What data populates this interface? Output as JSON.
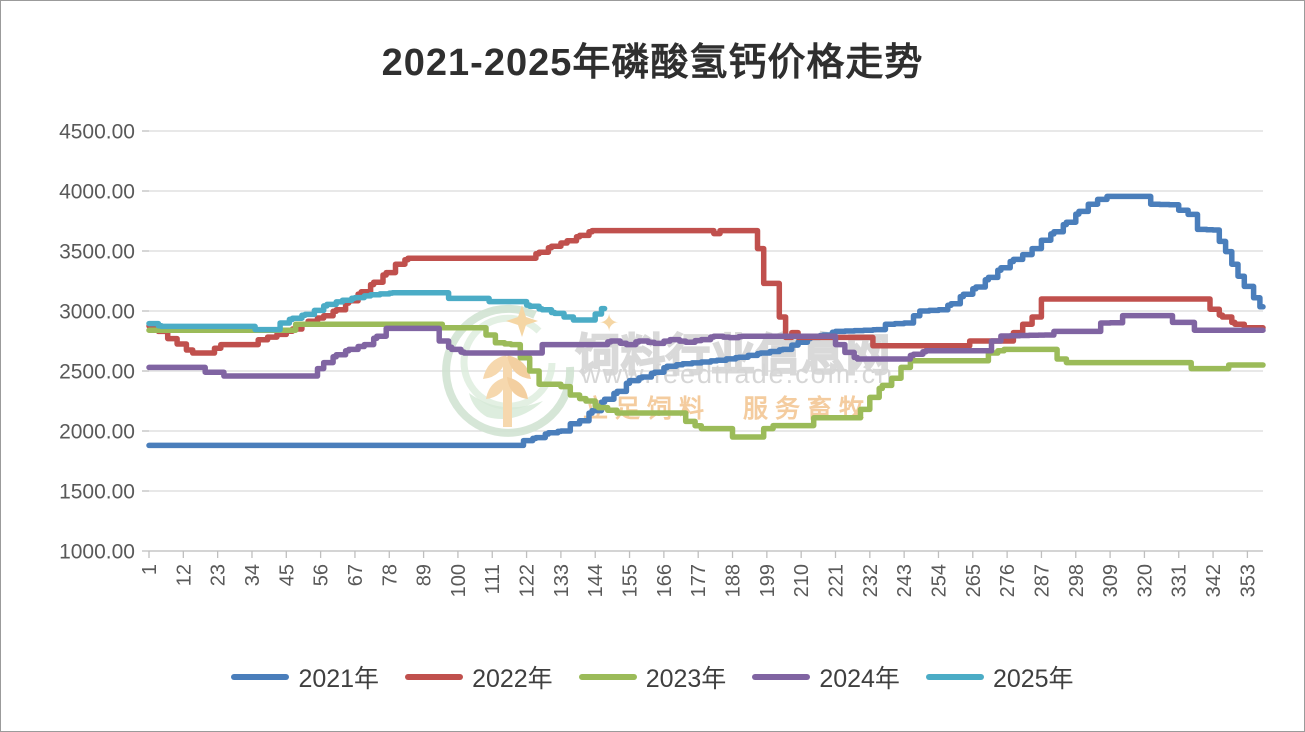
{
  "title": "2021-2025年磷酸氢钙价格走势",
  "watermark": {
    "site_name": "饲料行业信息网",
    "url": "www.feedtrade.com.cn",
    "slogan": "立足饲料　服务畜牧",
    "logo": "feedtrade-wheat-emblem",
    "sparkle_icon": "✦"
  },
  "colors": {
    "grid": "#d9d9d9",
    "axis": "#bfbfbf",
    "axis_text": "#595959",
    "title_text": "#2f2f2f"
  },
  "chart_data": {
    "type": "line",
    "title": "2021-2025年磷酸氢钙价格走势",
    "xlabel": "",
    "ylabel": "",
    "x_tick_labels": [
      1,
      12,
      23,
      34,
      45,
      56,
      67,
      78,
      89,
      100,
      111,
      122,
      133,
      144,
      155,
      166,
      177,
      188,
      199,
      210,
      221,
      232,
      243,
      254,
      265,
      276,
      287,
      298,
      309,
      320,
      331,
      342,
      353
    ],
    "x_range": [
      1,
      358
    ],
    "ylim": [
      1000,
      4500
    ],
    "y_tick_interval": 500,
    "y_tick_format": "0.00",
    "grid": "horizontal",
    "legend_position": "bottom",
    "series": [
      {
        "name": "2021年",
        "color": "#4a7ebb",
        "points": [
          [
            1,
            1880
          ],
          [
            118,
            1880
          ],
          [
            121,
            1920
          ],
          [
            125,
            1945
          ],
          [
            129,
            1985
          ],
          [
            133,
            2000
          ],
          [
            136,
            2060
          ],
          [
            139,
            2085
          ],
          [
            143,
            2170
          ],
          [
            147,
            2265
          ],
          [
            151,
            2330
          ],
          [
            155,
            2420
          ],
          [
            159,
            2450
          ],
          [
            163,
            2490
          ],
          [
            167,
            2540
          ],
          [
            172,
            2560
          ],
          [
            178,
            2575
          ],
          [
            183,
            2590
          ],
          [
            190,
            2615
          ],
          [
            197,
            2650
          ],
          [
            204,
            2680
          ],
          [
            209,
            2740
          ],
          [
            213,
            2780
          ],
          [
            217,
            2800
          ],
          [
            221,
            2830
          ],
          [
            234,
            2845
          ],
          [
            237,
            2890
          ],
          [
            243,
            2900
          ],
          [
            248,
            3000
          ],
          [
            254,
            3010
          ],
          [
            258,
            3060
          ],
          [
            262,
            3140
          ],
          [
            266,
            3200
          ],
          [
            270,
            3280
          ],
          [
            274,
            3360
          ],
          [
            278,
            3430
          ],
          [
            281,
            3470
          ],
          [
            284,
            3520
          ],
          [
            287,
            3590
          ],
          [
            291,
            3660
          ],
          [
            295,
            3740
          ],
          [
            299,
            3830
          ],
          [
            302,
            3890
          ],
          [
            305,
            3930
          ],
          [
            308,
            3955
          ],
          [
            319,
            3955
          ],
          [
            322,
            3890
          ],
          [
            328,
            3885
          ],
          [
            331,
            3840
          ],
          [
            334,
            3805
          ],
          [
            337,
            3680
          ],
          [
            342,
            3675
          ],
          [
            344,
            3580
          ],
          [
            346,
            3495
          ],
          [
            348,
            3390
          ],
          [
            350,
            3290
          ],
          [
            352,
            3205
          ],
          [
            355,
            3110
          ],
          [
            357,
            3035
          ],
          [
            358,
            3035
          ]
        ]
      },
      {
        "name": "2022年",
        "color": "#c0504d",
        "points": [
          [
            1,
            2875
          ],
          [
            4,
            2830
          ],
          [
            7,
            2770
          ],
          [
            10,
            2725
          ],
          [
            13,
            2675
          ],
          [
            15,
            2650
          ],
          [
            20,
            2650
          ],
          [
            22,
            2690
          ],
          [
            24,
            2720
          ],
          [
            33,
            2720
          ],
          [
            36,
            2760
          ],
          [
            42,
            2805
          ],
          [
            47,
            2850
          ],
          [
            52,
            2915
          ],
          [
            57,
            2960
          ],
          [
            61,
            3010
          ],
          [
            65,
            3085
          ],
          [
            69,
            3160
          ],
          [
            73,
            3240
          ],
          [
            77,
            3320
          ],
          [
            80,
            3390
          ],
          [
            84,
            3440
          ],
          [
            122,
            3440
          ],
          [
            126,
            3490
          ],
          [
            130,
            3540
          ],
          [
            135,
            3585
          ],
          [
            139,
            3630
          ],
          [
            143,
            3670
          ],
          [
            180,
            3670
          ],
          [
            182,
            3645
          ],
          [
            184,
            3670
          ],
          [
            194,
            3670
          ],
          [
            196,
            3520
          ],
          [
            198,
            3230
          ],
          [
            201,
            3230
          ],
          [
            203,
            2950
          ],
          [
            205,
            2780
          ],
          [
            207,
            2820
          ],
          [
            209,
            2780
          ],
          [
            231,
            2780
          ],
          [
            233,
            2710
          ],
          [
            261,
            2710
          ],
          [
            264,
            2750
          ],
          [
            275,
            2750
          ],
          [
            278,
            2820
          ],
          [
            281,
            2890
          ],
          [
            284,
            2950
          ],
          [
            287,
            3100
          ],
          [
            338,
            3100
          ],
          [
            341,
            3015
          ],
          [
            345,
            2950
          ],
          [
            349,
            2890
          ],
          [
            352,
            2860
          ],
          [
            358,
            2860
          ]
        ]
      },
      {
        "name": "2023年",
        "color": "#9bbb59",
        "points": [
          [
            1,
            2840
          ],
          [
            45,
            2840
          ],
          [
            48,
            2890
          ],
          [
            92,
            2890
          ],
          [
            95,
            2860
          ],
          [
            106,
            2860
          ],
          [
            109,
            2800
          ],
          [
            112,
            2735
          ],
          [
            117,
            2720
          ],
          [
            120,
            2610
          ],
          [
            123,
            2500
          ],
          [
            126,
            2390
          ],
          [
            130,
            2390
          ],
          [
            133,
            2370
          ],
          [
            136,
            2300
          ],
          [
            141,
            2250
          ],
          [
            145,
            2195
          ],
          [
            151,
            2150
          ],
          [
            170,
            2150
          ],
          [
            173,
            2080
          ],
          [
            178,
            2020
          ],
          [
            186,
            2020
          ],
          [
            188,
            1950
          ],
          [
            196,
            1950
          ],
          [
            198,
            2020
          ],
          [
            201,
            2045
          ],
          [
            211,
            2045
          ],
          [
            214,
            2110
          ],
          [
            226,
            2110
          ],
          [
            229,
            2180
          ],
          [
            232,
            2280
          ],
          [
            236,
            2380
          ],
          [
            239,
            2440
          ],
          [
            242,
            2530
          ],
          [
            245,
            2585
          ],
          [
            267,
            2585
          ],
          [
            270,
            2650
          ],
          [
            275,
            2680
          ],
          [
            289,
            2680
          ],
          [
            292,
            2600
          ],
          [
            295,
            2570
          ],
          [
            332,
            2570
          ],
          [
            335,
            2520
          ],
          [
            344,
            2520
          ],
          [
            347,
            2550
          ],
          [
            358,
            2550
          ]
        ]
      },
      {
        "name": "2024年",
        "color": "#8064a2",
        "points": [
          [
            1,
            2530
          ],
          [
            17,
            2530
          ],
          [
            19,
            2490
          ],
          [
            23,
            2490
          ],
          [
            25,
            2458
          ],
          [
            52,
            2458
          ],
          [
            55,
            2520
          ],
          [
            57,
            2570
          ],
          [
            61,
            2635
          ],
          [
            65,
            2680
          ],
          [
            70,
            2720
          ],
          [
            74,
            2790
          ],
          [
            77,
            2855
          ],
          [
            91,
            2855
          ],
          [
            94,
            2750
          ],
          [
            98,
            2680
          ],
          [
            102,
            2650
          ],
          [
            124,
            2650
          ],
          [
            127,
            2720
          ],
          [
            145,
            2720
          ],
          [
            149,
            2750
          ],
          [
            154,
            2720
          ],
          [
            158,
            2750
          ],
          [
            163,
            2730
          ],
          [
            168,
            2762
          ],
          [
            173,
            2740
          ],
          [
            178,
            2762
          ],
          [
            182,
            2790
          ],
          [
            187,
            2778
          ],
          [
            191,
            2790
          ],
          [
            218,
            2790
          ],
          [
            221,
            2720
          ],
          [
            224,
            2655
          ],
          [
            228,
            2600
          ],
          [
            242,
            2600
          ],
          [
            246,
            2640
          ],
          [
            250,
            2668
          ],
          [
            268,
            2668
          ],
          [
            271,
            2750
          ],
          [
            274,
            2792
          ],
          [
            288,
            2800
          ],
          [
            291,
            2830
          ],
          [
            303,
            2830
          ],
          [
            306,
            2900
          ],
          [
            310,
            2902
          ],
          [
            313,
            2962
          ],
          [
            327,
            2962
          ],
          [
            329,
            2905
          ],
          [
            334,
            2905
          ],
          [
            336,
            2840
          ],
          [
            358,
            2840
          ]
        ]
      },
      {
        "name": "2025年",
        "color": "#4bacc6",
        "points": [
          [
            1,
            2895
          ],
          [
            5,
            2872
          ],
          [
            33,
            2872
          ],
          [
            35,
            2845
          ],
          [
            40,
            2845
          ],
          [
            43,
            2900
          ],
          [
            47,
            2940
          ],
          [
            51,
            2972
          ],
          [
            54,
            3005
          ],
          [
            58,
            3055
          ],
          [
            63,
            3090
          ],
          [
            67,
            3112
          ],
          [
            72,
            3135
          ],
          [
            79,
            3152
          ],
          [
            95,
            3152
          ],
          [
            97,
            3105
          ],
          [
            107,
            3105
          ],
          [
            110,
            3078
          ],
          [
            119,
            3078
          ],
          [
            123,
            3040
          ],
          [
            127,
            3010
          ],
          [
            131,
            2980
          ],
          [
            134,
            2950
          ],
          [
            137,
            2925
          ],
          [
            141,
            2925
          ],
          [
            144,
            2975
          ],
          [
            146,
            3020
          ],
          [
            147,
            3020
          ]
        ]
      }
    ]
  }
}
